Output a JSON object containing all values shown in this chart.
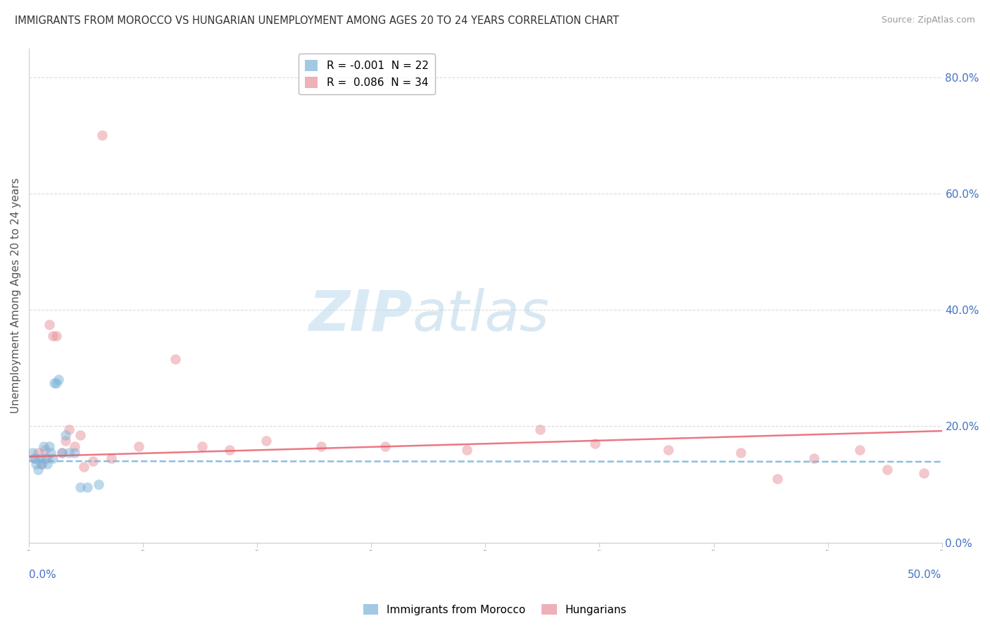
{
  "title": "IMMIGRANTS FROM MOROCCO VS HUNGARIAN UNEMPLOYMENT AMONG AGES 20 TO 24 YEARS CORRELATION CHART",
  "source": "Source: ZipAtlas.com",
  "ylabel": "Unemployment Among Ages 20 to 24 years",
  "xlim": [
    0.0,
    0.5
  ],
  "ylim": [
    0.0,
    0.85
  ],
  "right_yticks": [
    0.0,
    0.2,
    0.4,
    0.6,
    0.8
  ],
  "right_yticklabels": [
    "0.0%",
    "20.0%",
    "40.0%",
    "60.0%",
    "80.0%"
  ],
  "blue_scatter_x": [
    0.002,
    0.003,
    0.004,
    0.005,
    0.006,
    0.007,
    0.008,
    0.009,
    0.01,
    0.011,
    0.012,
    0.013,
    0.014,
    0.015,
    0.016,
    0.018,
    0.02,
    0.022,
    0.025,
    0.028,
    0.032,
    0.038
  ],
  "blue_scatter_y": [
    0.155,
    0.145,
    0.135,
    0.125,
    0.145,
    0.135,
    0.165,
    0.145,
    0.135,
    0.165,
    0.155,
    0.145,
    0.275,
    0.275,
    0.28,
    0.155,
    0.185,
    0.155,
    0.155,
    0.095,
    0.095,
    0.1
  ],
  "pink_scatter_x": [
    0.003,
    0.005,
    0.007,
    0.009,
    0.01,
    0.011,
    0.013,
    0.015,
    0.018,
    0.02,
    0.022,
    0.025,
    0.028,
    0.03,
    0.035,
    0.04,
    0.045,
    0.06,
    0.08,
    0.095,
    0.11,
    0.13,
    0.16,
    0.195,
    0.24,
    0.28,
    0.31,
    0.35,
    0.39,
    0.41,
    0.43,
    0.455,
    0.47,
    0.49
  ],
  "pink_scatter_y": [
    0.145,
    0.155,
    0.135,
    0.16,
    0.145,
    0.375,
    0.355,
    0.355,
    0.155,
    0.175,
    0.195,
    0.165,
    0.185,
    0.13,
    0.14,
    0.7,
    0.145,
    0.165,
    0.315,
    0.165,
    0.16,
    0.175,
    0.165,
    0.165,
    0.16,
    0.195,
    0.17,
    0.16,
    0.155,
    0.11,
    0.145,
    0.16,
    0.125,
    0.12
  ],
  "blue_line_x": [
    0.0,
    0.5
  ],
  "blue_line_y_start": 0.14,
  "blue_line_slope": -0.002,
  "pink_line_x": [
    0.0,
    0.5
  ],
  "pink_line_y_start": 0.148,
  "pink_line_slope": 0.088,
  "watermark_zip": "ZIP",
  "watermark_atlas": "atlas",
  "background_color": "#ffffff",
  "scatter_alpha": 0.5,
  "scatter_size": 110,
  "title_color": "#333333",
  "right_tick_color": "#4472c4",
  "grid_color": "#cccccc",
  "blue_color": "#7ab3d9",
  "pink_color": "#e8909a",
  "blue_line_color": "#7ab3d9",
  "pink_line_color": "#e8606e",
  "legend_blue_label": "R = -0.001  N = 22",
  "legend_pink_label": "R =  0.086  N = 34",
  "bottom_blue_label": "Immigrants from Morocco",
  "bottom_pink_label": "Hungarians"
}
